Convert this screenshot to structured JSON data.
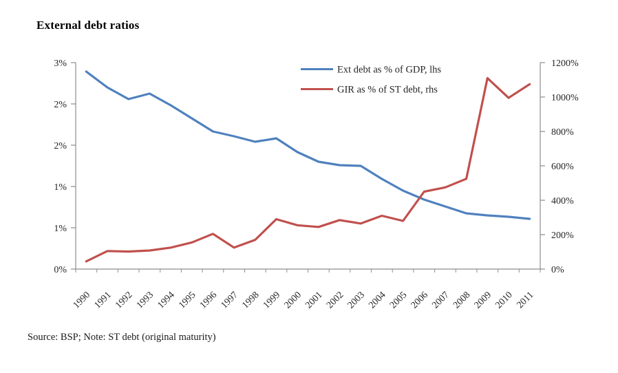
{
  "title": "External debt ratios",
  "source_note": "Source: BSP; Note: ST debt (original maturity)",
  "colors": {
    "blue_series": "#4F81BD",
    "red_series": "#C0504D",
    "axis_line": "#8C8C8C",
    "axis_text": "#262626"
  },
  "legend": {
    "items": [
      {
        "label": "Ext debt as % of GDP, lhs",
        "color": "#4F81BD"
      },
      {
        "label": "GIR as % of ST debt, rhs",
        "color": "#C0504D"
      }
    ]
  },
  "chart_data": {
    "type": "line",
    "title": "External debt ratios",
    "categories": [
      "1990",
      "1991",
      "1992",
      "1993",
      "1994",
      "1995",
      "1996",
      "1997",
      "1998",
      "1999",
      "2000",
      "2001",
      "2002",
      "2003",
      "2004",
      "2005",
      "2006",
      "2007",
      "2008",
      "2009",
      "2010",
      "2011"
    ],
    "series": [
      {
        "name": "Ext debt as % of GDP, lhs",
        "axis": "left",
        "color": "#4F81BD",
        "values": [
          2.87,
          2.64,
          2.47,
          2.55,
          2.38,
          2.19,
          2.0,
          1.93,
          1.85,
          1.9,
          1.7,
          1.56,
          1.51,
          1.5,
          1.31,
          1.14,
          1.01,
          0.91,
          0.81,
          0.78,
          0.76,
          0.73
        ]
      },
      {
        "name": "GIR as % of ST debt, rhs",
        "axis": "right",
        "color": "#C0504D",
        "values": [
          45,
          105,
          102,
          108,
          125,
          155,
          205,
          125,
          170,
          290,
          255,
          245,
          285,
          265,
          310,
          280,
          450,
          475,
          525,
          1110,
          995,
          1075
        ]
      }
    ],
    "left_axis": {
      "min": 0,
      "max": 3,
      "unit": "%",
      "tick_labels_top_to_bottom": [
        "3%",
        "2%",
        "2%",
        "1%",
        "1%",
        "0%"
      ]
    },
    "right_axis": {
      "min": 0,
      "max": 1200,
      "unit": "%",
      "tick_labels_top_to_bottom": [
        "1200%",
        "1000%",
        "800%",
        "600%",
        "400%",
        "200%",
        "0%"
      ]
    },
    "grid": false,
    "legend_position": "top-center-right-inside"
  }
}
